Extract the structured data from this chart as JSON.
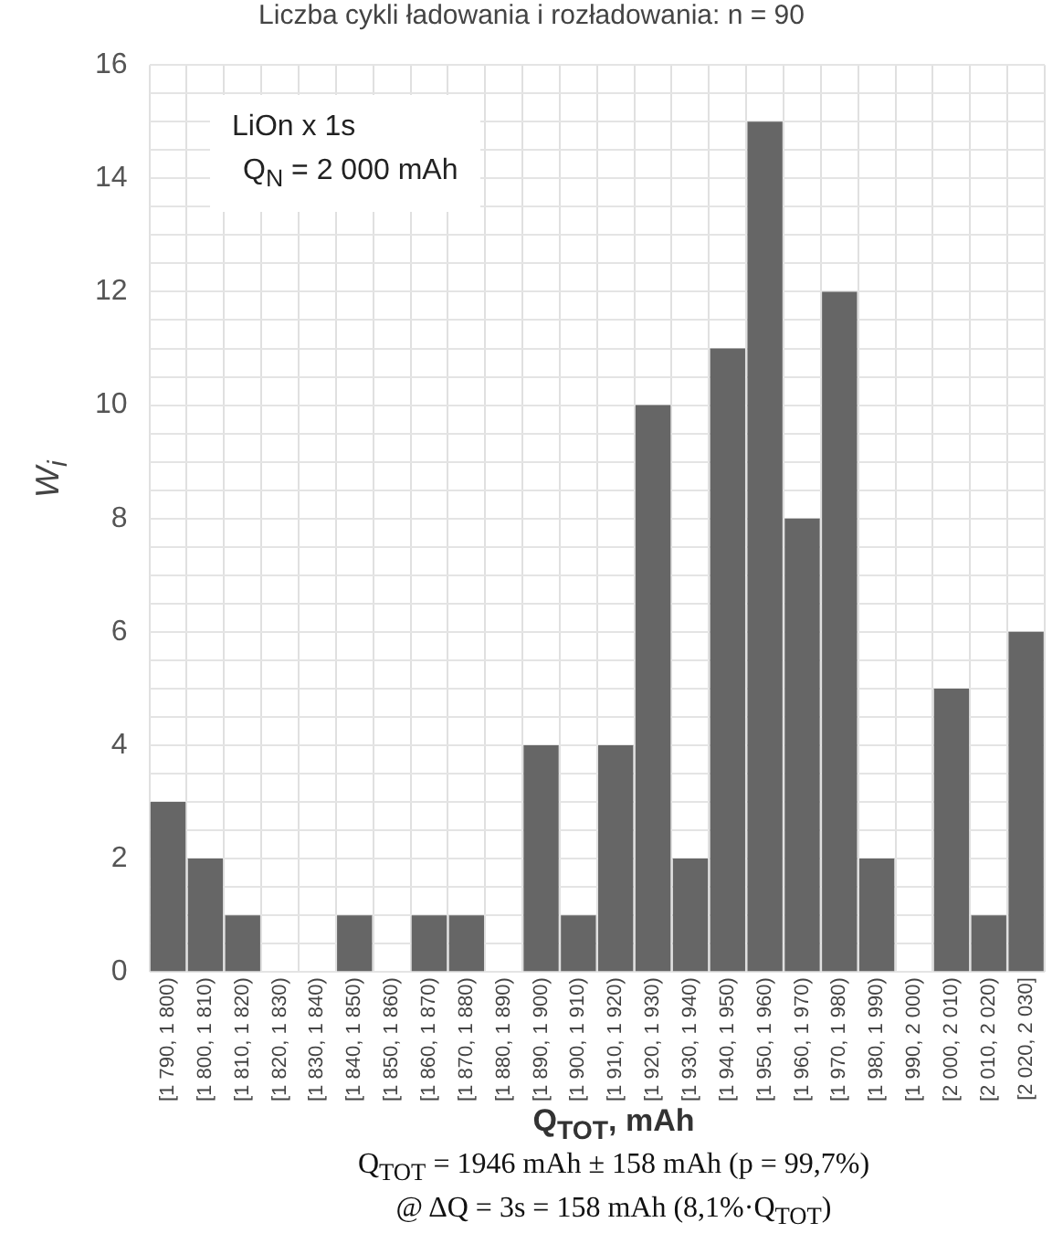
{
  "chart_data": {
    "type": "bar",
    "title": "Liczba cykli ładowania i rozładowania: n = 90",
    "xlabel": "Q$_{TOT}$, mAh",
    "ylabel": "W$_{i}$",
    "categories": [
      "[1 790, 1 800)",
      "[1 800, 1 810)",
      "[1 810, 1 820)",
      "[1 820, 1 830)",
      "[1 830, 1 840)",
      "[1 840, 1 850)",
      "[1 850, 1 860)",
      "[1 860, 1 870)",
      "[1 870, 1 880)",
      "[1 880, 1 890)",
      "[1 890, 1 900)",
      "[1 900, 1 910)",
      "[1 910, 1 920)",
      "[1 920, 1 930)",
      "[1 930, 1 940)",
      "[1 940, 1 950)",
      "[1 950, 1 960)",
      "[1 960, 1 970)",
      "[1 970, 1 980)",
      "[1 980, 1 990)",
      "[1 990, 2 000)",
      "[2 000, 2 010)",
      "[2 010, 2 020)",
      "[2 020, 2 030]"
    ],
    "values": [
      3,
      2,
      1,
      0,
      0,
      1,
      0,
      1,
      1,
      0,
      4,
      1,
      4,
      10,
      2,
      11,
      15,
      8,
      12,
      2,
      0,
      5,
      1,
      6
    ],
    "color": "#666666",
    "ylim": [
      0,
      16
    ],
    "yticks": [
      0,
      {
        "value": 0.5,
        "label": null
      },
      {
        "value": 1,
        "label": null
      },
      {
        "value": 1.5,
        "label": null
      },
      2,
      {
        "value": 2.5,
        "label": null
      },
      {
        "value": 3,
        "label": null
      },
      {
        "value": 3.5,
        "label": null
      },
      4,
      {
        "value": 4.5,
        "label": null
      },
      {
        "value": 5,
        "label": null
      },
      {
        "value": 5.5,
        "label": null
      },
      6,
      {
        "value": 6.5,
        "label": null
      },
      {
        "value": 7,
        "label": null
      },
      {
        "value": 7.5,
        "label": null
      },
      8,
      {
        "value": 8.5,
        "label": null
      },
      {
        "value": 9,
        "label": null
      },
      {
        "value": 9.5,
        "label": null
      },
      10,
      {
        "value": 10.5,
        "label": null
      },
      {
        "value": 11,
        "label": null
      },
      {
        "value": 11.5,
        "label": null
      },
      12,
      {
        "value": 12.5,
        "label": null
      },
      {
        "value": 13,
        "label": null
      },
      {
        "value": 13.5,
        "label": null
      },
      14,
      {
        "value": 14.5,
        "label": null
      },
      {
        "value": 15,
        "label": null
      },
      {
        "value": 15.5,
        "label": null
      },
      16
    ],
    "grid": true,
    "annotations": [
      "LiOn x 1s",
      "Q$_{N}$ = 2 000 mAh",
      "Q$_{TOT}$ = 1946 mAh ± 158 mAh (p = 99,7%)",
      "@ ΔQ = 3s = 158 mAh (8,1%·Q$_{TOT}$)"
    ]
  }
}
